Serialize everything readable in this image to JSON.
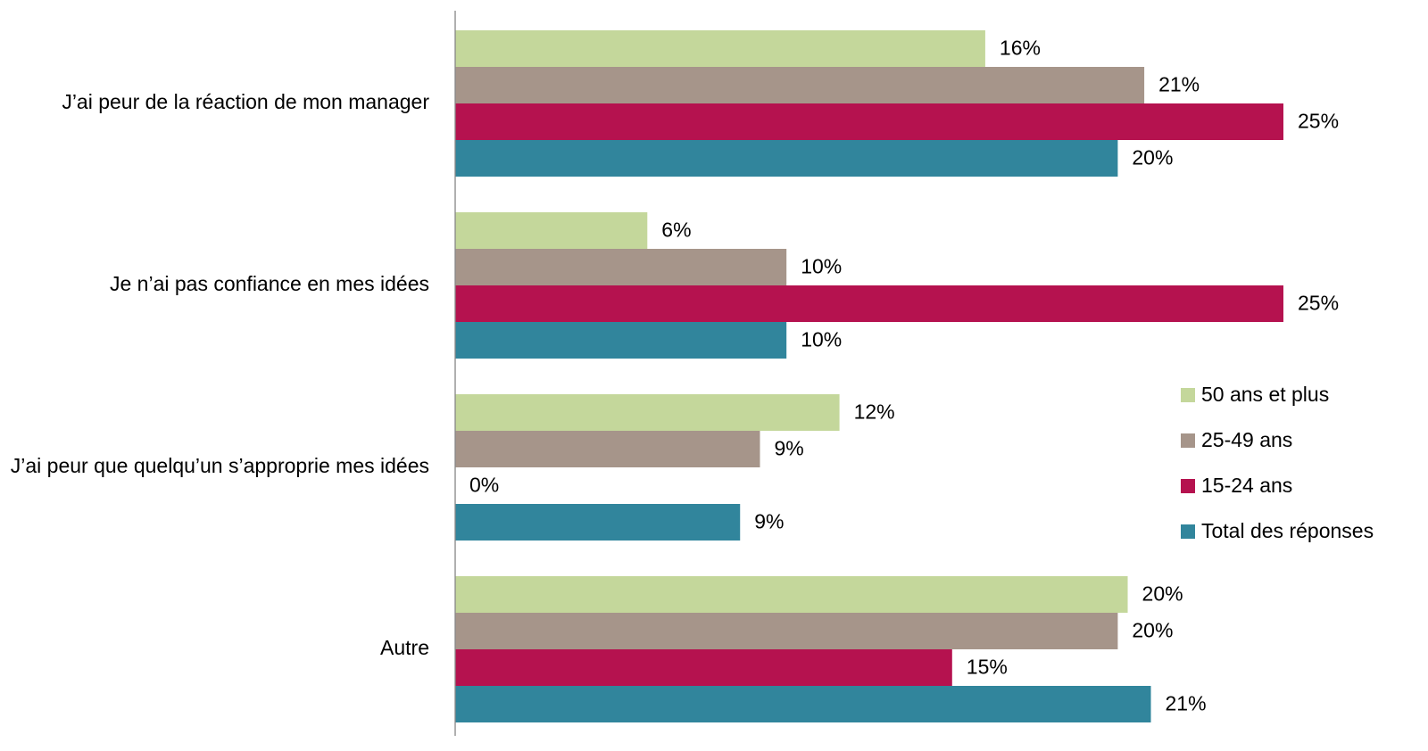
{
  "chart_data": {
    "type": "bar",
    "orientation": "horizontal",
    "categories": [
      "J’ai peur de la réaction de mon manager",
      "Je n’ai pas confiance en mes idées",
      "J’ai peur que quelqu’un s’approprie mes idées",
      "Autre"
    ],
    "series": [
      {
        "name": "50 ans et plus",
        "color": "#c4d79b",
        "values": [
          16.0,
          5.8,
          11.6,
          20.3
        ],
        "value_labels": [
          "16%",
          "6%",
          "12%",
          "20%"
        ]
      },
      {
        "name": "25-49 ans",
        "color": "#a6958a",
        "values": [
          20.8,
          10.0,
          9.2,
          20.0
        ],
        "value_labels": [
          "21%",
          "10%",
          "9%",
          "20%"
        ]
      },
      {
        "name": "15-24 ans",
        "color": "#b5124f",
        "values": [
          25,
          25,
          0,
          15.0
        ],
        "value_labels": [
          "25%",
          "25%",
          "0%",
          "15%"
        ]
      },
      {
        "name": "Total des réponses",
        "color": "#31859c",
        "values": [
          20.0,
          10.0,
          8.6,
          21.0
        ],
        "value_labels": [
          "20%",
          "10%",
          "9%",
          "21%"
        ]
      }
    ],
    "xlim": [
      0,
      25
    ],
    "legend": "right"
  }
}
